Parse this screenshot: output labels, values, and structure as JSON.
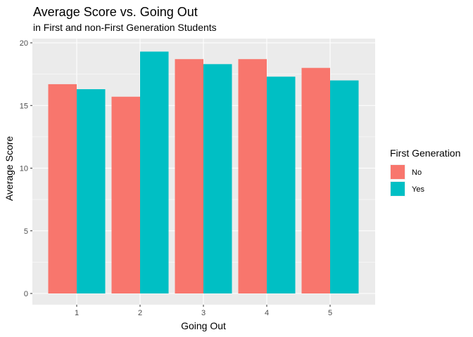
{
  "chart_data": {
    "type": "bar",
    "title": "Average Score vs. Going Out",
    "subtitle": "in First and non-First Generation Students",
    "xlabel": "Going Out",
    "ylabel": "Average Score",
    "categories": [
      "1",
      "2",
      "3",
      "4",
      "5"
    ],
    "y_ticks": [
      "0",
      "5",
      "10",
      "15",
      "20"
    ],
    "ylim": [
      0,
      20
    ],
    "grid": true,
    "legend": {
      "title": "First Generation",
      "position": "right"
    },
    "series": [
      {
        "name": "No",
        "color": "#F8766D",
        "values": [
          16.7,
          15.7,
          18.7,
          18.7,
          18.0
        ]
      },
      {
        "name": "Yes",
        "color": "#00BFC4",
        "values": [
          16.3,
          19.3,
          18.3,
          17.3,
          17.0
        ]
      }
    ],
    "panel_background": "#EBEBEB",
    "gridline_color": "#FFFFFF"
  }
}
